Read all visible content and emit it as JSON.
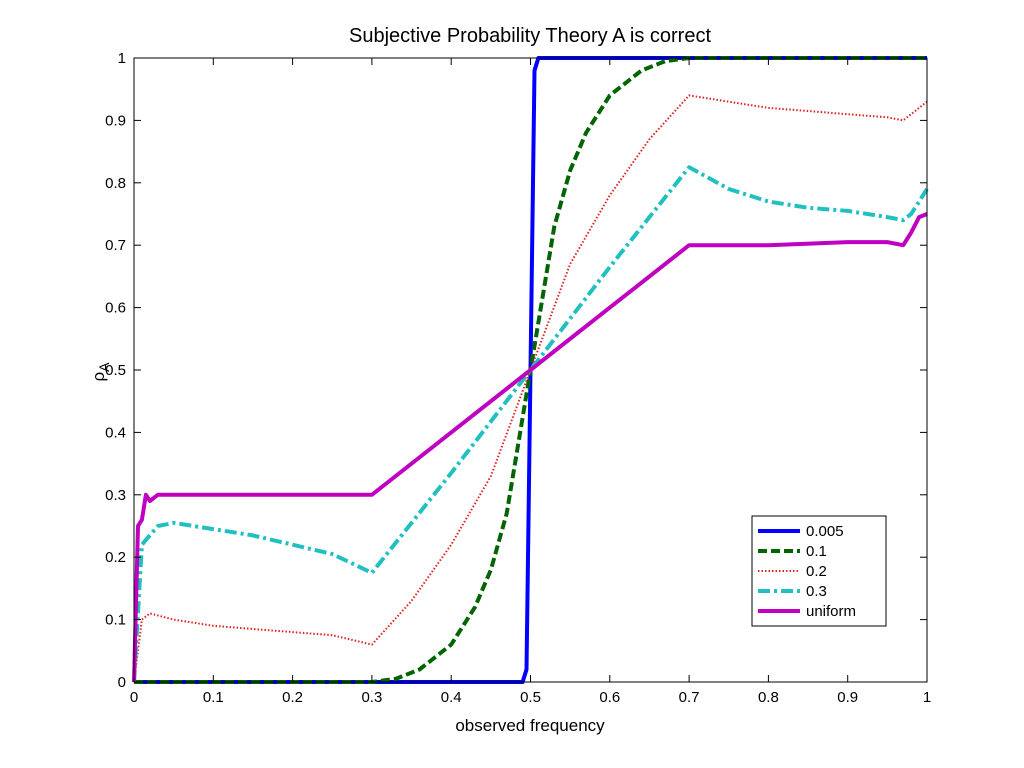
{
  "chart_data": {
    "type": "line",
    "title": "Subjective Probability Theory A is correct",
    "xlabel": "observed frequency",
    "ylabel": "ρ",
    "ylabel_subscript": "A",
    "xlim": [
      0,
      1
    ],
    "ylim": [
      0,
      1
    ],
    "xticks": [
      0,
      0.1,
      0.2,
      0.3,
      0.4,
      0.5,
      0.6,
      0.7,
      0.8,
      0.9,
      1
    ],
    "xtick_labels": [
      "0",
      "0.1",
      "0.2",
      "0.3",
      "0.4",
      "0.5",
      "0.6",
      "0.7",
      "0.8",
      "0.9",
      "1"
    ],
    "yticks": [
      0,
      0.1,
      0.2,
      0.3,
      0.4,
      0.5,
      0.6,
      0.7,
      0.8,
      0.9,
      1
    ],
    "ytick_labels": [
      "0",
      "0.1",
      "0.2",
      "0.3",
      "0.4",
      "0.5",
      "0.6",
      "0.7",
      "0.8",
      "0.9",
      "1"
    ],
    "grid": false,
    "legend_position": "bottom-right",
    "series": [
      {
        "name": "0.005",
        "color": "#0000ff",
        "style": "solid-thick",
        "x": [
          0,
          0.49,
          0.495,
          0.5,
          0.505,
          0.51,
          0.6,
          0.7,
          0.8,
          0.9,
          1
        ],
        "y": [
          0,
          0,
          0.02,
          0.5,
          0.98,
          1,
          1,
          1,
          1,
          1,
          1
        ]
      },
      {
        "name": "0.1",
        "color": "#006400",
        "style": "dashed",
        "x": [
          0,
          0.3,
          0.33,
          0.36,
          0.4,
          0.43,
          0.45,
          0.47,
          0.5,
          0.53,
          0.55,
          0.57,
          0.6,
          0.64,
          0.67,
          0.7,
          0.8,
          0.9,
          1
        ],
        "y": [
          0,
          0,
          0.005,
          0.02,
          0.06,
          0.12,
          0.18,
          0.27,
          0.5,
          0.73,
          0.82,
          0.88,
          0.94,
          0.98,
          0.995,
          1,
          1,
          1,
          1
        ]
      },
      {
        "name": "0.2",
        "color": "#e02020",
        "style": "dotted",
        "x": [
          0,
          0.01,
          0.02,
          0.05,
          0.1,
          0.15,
          0.2,
          0.25,
          0.3,
          0.35,
          0.4,
          0.45,
          0.5,
          0.55,
          0.6,
          0.65,
          0.7,
          0.75,
          0.8,
          0.85,
          0.9,
          0.95,
          0.97,
          0.98,
          0.99,
          1
        ],
        "y": [
          0,
          0.1,
          0.11,
          0.1,
          0.09,
          0.085,
          0.08,
          0.075,
          0.06,
          0.13,
          0.22,
          0.33,
          0.5,
          0.67,
          0.78,
          0.87,
          0.94,
          0.93,
          0.92,
          0.915,
          0.91,
          0.905,
          0.9,
          0.91,
          0.92,
          0.93
        ]
      },
      {
        "name": "0.3",
        "color": "#20c0c0",
        "style": "dashdot",
        "x": [
          0,
          0.01,
          0.03,
          0.05,
          0.1,
          0.15,
          0.2,
          0.25,
          0.3,
          0.4,
          0.5,
          0.6,
          0.7,
          0.75,
          0.8,
          0.85,
          0.9,
          0.95,
          0.97,
          0.98,
          0.99,
          1
        ],
        "y": [
          0,
          0.22,
          0.25,
          0.255,
          0.245,
          0.235,
          0.22,
          0.205,
          0.175,
          0.335,
          0.5,
          0.665,
          0.825,
          0.79,
          0.77,
          0.76,
          0.755,
          0.745,
          0.74,
          0.75,
          0.77,
          0.79
        ]
      },
      {
        "name": "uniform",
        "color": "#c000c0",
        "style": "solid-thick",
        "x": [
          0,
          0.005,
          0.01,
          0.015,
          0.02,
          0.03,
          0.05,
          0.1,
          0.2,
          0.3,
          0.4,
          0.5,
          0.6,
          0.7,
          0.8,
          0.9,
          0.95,
          0.97,
          0.98,
          0.99,
          1
        ],
        "y": [
          0,
          0.25,
          0.26,
          0.3,
          0.29,
          0.3,
          0.3,
          0.3,
          0.3,
          0.3,
          0.4,
          0.5,
          0.6,
          0.7,
          0.7,
          0.705,
          0.705,
          0.7,
          0.72,
          0.745,
          0.75
        ]
      }
    ]
  }
}
